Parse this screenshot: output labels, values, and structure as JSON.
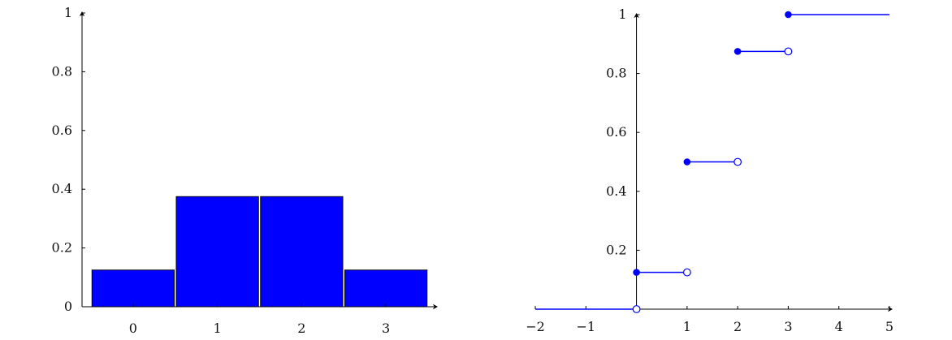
{
  "chart_data": [
    {
      "type": "bar",
      "categories": [
        "0",
        "1",
        "2",
        "3"
      ],
      "values": [
        0.125,
        0.375,
        0.375,
        0.125
      ],
      "xlim": [
        -0.5,
        3.5
      ],
      "ylim": [
        0,
        1
      ],
      "xticks": [
        "0",
        "1",
        "2",
        "3"
      ],
      "yticks": [
        "0",
        "0.2",
        "0.4",
        "0.6",
        "0.8",
        "1"
      ],
      "bar_color": "#0000ff",
      "grid": false,
      "title": "",
      "xlabel": "",
      "ylabel": ""
    },
    {
      "type": "line",
      "subtype": "step",
      "xlim": [
        -2,
        5
      ],
      "ylim": [
        0,
        1
      ],
      "xticks": [
        "−2",
        "−1",
        "1",
        "2",
        "3",
        "4",
        "5"
      ],
      "yticks": [
        "0.2",
        "0.4",
        "0.6",
        "0.8",
        "1"
      ],
      "line_color": "#0000ff",
      "grid": false,
      "title": "",
      "xlabel": "",
      "ylabel": "",
      "segments": [
        {
          "x_start": -2,
          "x_end": 0,
          "y": 0,
          "closed_start": false,
          "open_end": true
        },
        {
          "x_start": 0,
          "x_end": 1,
          "y": 0.125,
          "closed_start": true,
          "open_end": true
        },
        {
          "x_start": 1,
          "x_end": 2,
          "y": 0.5,
          "closed_start": true,
          "open_end": true
        },
        {
          "x_start": 2,
          "x_end": 3,
          "y": 0.875,
          "closed_start": true,
          "open_end": true
        },
        {
          "x_start": 3,
          "x_end": 5,
          "y": 1,
          "closed_start": true,
          "open_end": false
        }
      ]
    }
  ]
}
